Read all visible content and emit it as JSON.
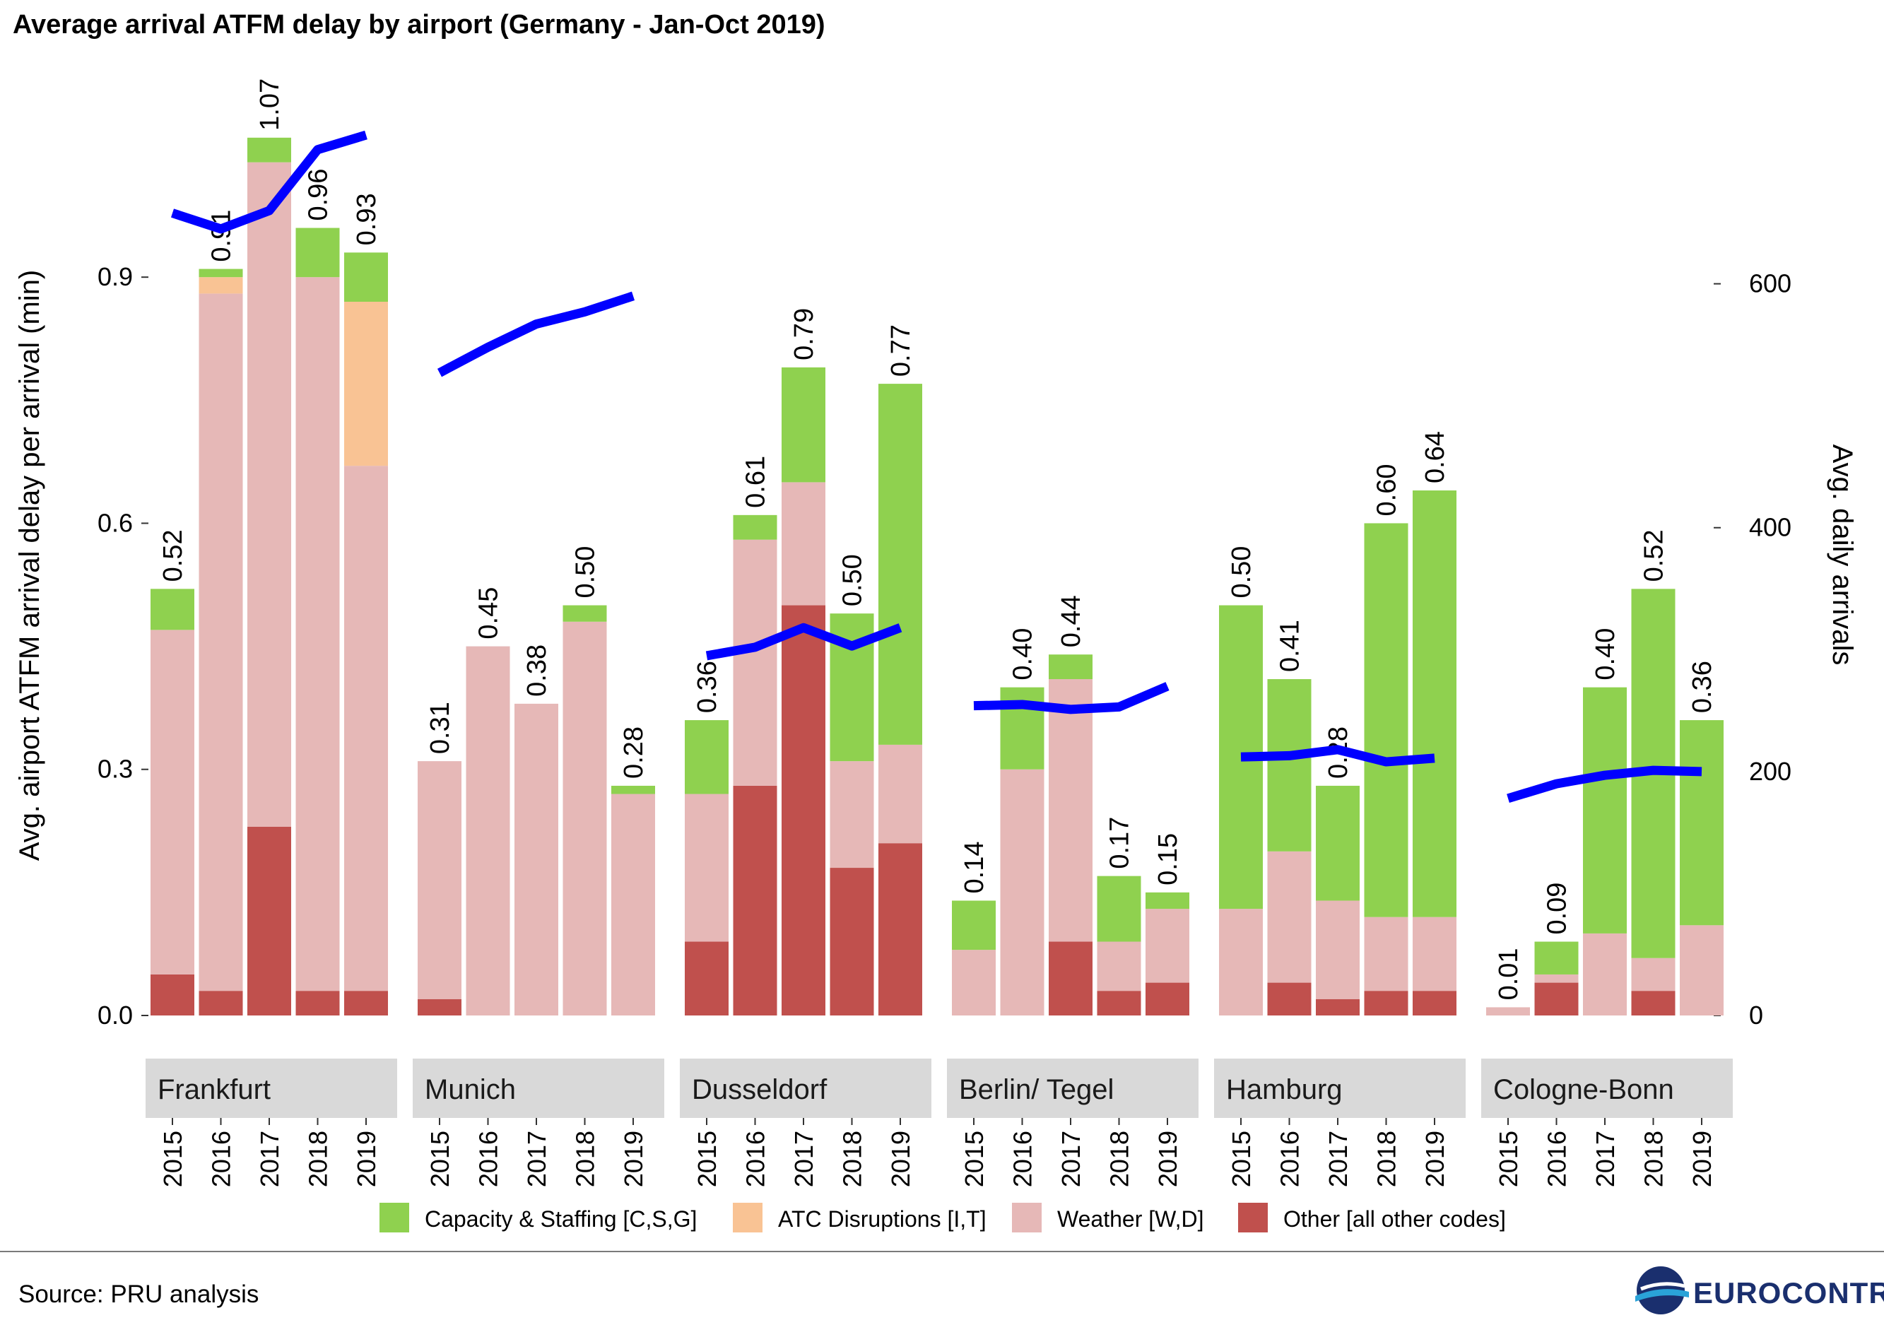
{
  "title": "Average arrival ATFM delay by airport (Germany - Jan-Oct 2019)",
  "source": "Source: PRU analysis",
  "logo_text": "EUROCONTROL",
  "colors": {
    "capacity": "#8fd14f",
    "atc": "#f9c394",
    "weather": "#e6b8b7",
    "other": "#c0504d",
    "arrivals_line": "#0000ff",
    "facet_strip": "#d9d9d9"
  },
  "chart_data": {
    "type": "bar",
    "stacked": true,
    "ylabel": "Avg. airport ATFM arrival delay per arrival (min)",
    "y2label": "Avg. daily arrivals",
    "ylim": [
      0,
      1.1
    ],
    "y2lim": [
      0,
      740
    ],
    "yticks": [
      "0.0",
      "0.3",
      "0.6",
      "0.9"
    ],
    "y2ticks": [
      "0",
      "200",
      "400",
      "600"
    ],
    "legend_position": "bottom",
    "years": [
      "2015",
      "2016",
      "2017",
      "2018",
      "2019"
    ],
    "legend": [
      {
        "key": "capacity",
        "label": "Capacity & Staffing [C,S,G]"
      },
      {
        "key": "atc",
        "label": "ATC Disruptions [I,T]"
      },
      {
        "key": "weather",
        "label": "Weather [W,D]"
      },
      {
        "key": "other",
        "label": "Other [all other codes]"
      }
    ],
    "airports": [
      {
        "name": "Frankfurt",
        "totals": [
          "0.52",
          "0.91",
          "1.07",
          "0.96",
          "0.93"
        ],
        "capacity": [
          0.05,
          0.01,
          0.03,
          0.06,
          0.06
        ],
        "atc": [
          0.0,
          0.02,
          0.0,
          0.0,
          0.2
        ],
        "weather": [
          0.42,
          0.85,
          0.81,
          0.87,
          0.64
        ],
        "other": [
          0.05,
          0.03,
          0.23,
          0.03,
          0.03
        ],
        "arrivals": [
          658,
          645,
          660,
          710,
          722
        ]
      },
      {
        "name": "Munich",
        "totals": [
          "0.31",
          "0.45",
          "0.38",
          "0.50",
          "0.28"
        ],
        "capacity": [
          0.0,
          0.0,
          0.0,
          0.02,
          0.01
        ],
        "atc": [
          0.0,
          0.0,
          0.0,
          0.0,
          0.0
        ],
        "weather": [
          0.29,
          0.45,
          0.38,
          0.48,
          0.27
        ],
        "other": [
          0.02,
          0.0,
          0.0,
          0.0,
          0.0
        ],
        "arrivals": [
          527,
          548,
          567,
          577,
          590
        ]
      },
      {
        "name": "Dusseldorf",
        "totals": [
          "0.36",
          "0.61",
          "0.79",
          "0.50",
          "0.77"
        ],
        "capacity": [
          0.09,
          0.03,
          0.14,
          0.18,
          0.44
        ],
        "atc": [
          0.0,
          0.0,
          0.0,
          0.0,
          0.0
        ],
        "weather": [
          0.18,
          0.3,
          0.15,
          0.13,
          0.12
        ],
        "other": [
          0.09,
          0.28,
          0.5,
          0.18,
          0.21
        ],
        "arrivals": [
          295,
          302,
          318,
          303,
          318
        ]
      },
      {
        "name": "Berlin/ Tegel",
        "totals": [
          "0.14",
          "0.40",
          "0.44",
          "0.17",
          "0.15"
        ],
        "capacity": [
          0.06,
          0.1,
          0.03,
          0.08,
          0.02
        ],
        "atc": [
          0.0,
          0.0,
          0.0,
          0.0,
          0.0
        ],
        "weather": [
          0.08,
          0.3,
          0.32,
          0.06,
          0.09
        ],
        "other": [
          0.0,
          0.0,
          0.09,
          0.03,
          0.04
        ],
        "arrivals": [
          254,
          255,
          251,
          253,
          270
        ]
      },
      {
        "name": "Hamburg",
        "totals": [
          "0.50",
          "0.41",
          "0.28",
          "0.60",
          "0.64"
        ],
        "capacity": [
          0.37,
          0.21,
          0.14,
          0.48,
          0.52
        ],
        "atc": [
          0.0,
          0.0,
          0.0,
          0.0,
          0.0
        ],
        "weather": [
          0.13,
          0.16,
          0.12,
          0.09,
          0.09
        ],
        "other": [
          0.0,
          0.04,
          0.02,
          0.03,
          0.03
        ],
        "arrivals": [
          212,
          213,
          218,
          208,
          211
        ]
      },
      {
        "name": "Cologne-Bonn",
        "totals": [
          "0.01",
          "0.09",
          "0.40",
          "0.52",
          "0.36"
        ],
        "capacity": [
          0.0,
          0.04,
          0.3,
          0.45,
          0.25
        ],
        "atc": [
          0.0,
          0.0,
          0.0,
          0.0,
          0.0
        ],
        "weather": [
          0.01,
          0.01,
          0.1,
          0.04,
          0.11
        ],
        "other": [
          0.0,
          0.04,
          0.0,
          0.03,
          0.0
        ],
        "arrivals": [
          178,
          190,
          197,
          201,
          200
        ]
      }
    ]
  }
}
